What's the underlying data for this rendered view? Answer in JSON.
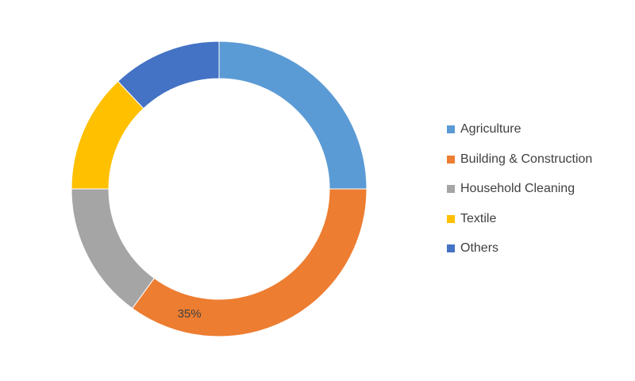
{
  "chart_data": {
    "type": "pie",
    "variant": "doughnut",
    "title": "",
    "categories": [
      "Agriculture",
      "Building & Construction",
      "Household Cleaning",
      "Textile",
      "Others"
    ],
    "values": [
      25,
      35,
      15,
      13,
      12
    ],
    "unit": "%",
    "colors": [
      "#5B9BD5",
      "#ED7D31",
      "#A5A5A5",
      "#FFC000",
      "#4472C4"
    ],
    "data_labels": [
      {
        "category": "Building & Construction",
        "text": "35%"
      }
    ],
    "legend_position": "right"
  }
}
